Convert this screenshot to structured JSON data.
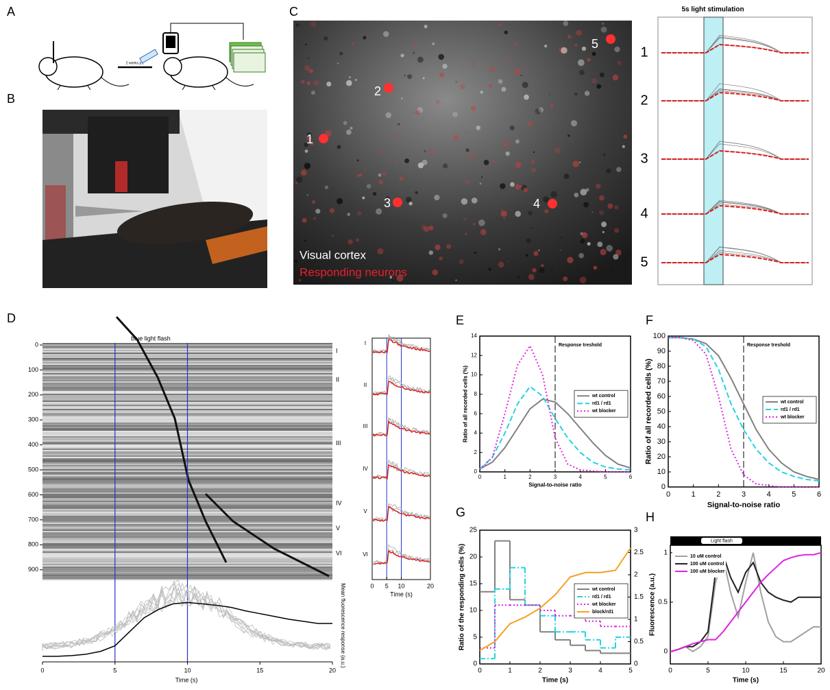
{
  "panel_labels": [
    "A",
    "B",
    "C",
    "D",
    "E",
    "F",
    "G",
    "H"
  ],
  "panel_a": {
    "interval": "2 weeks p.i."
  },
  "panel_c": {
    "cell_labels": [
      "1",
      "2",
      "3",
      "4",
      "5"
    ],
    "legend": [
      "Visual cortex",
      "Responding neurons"
    ],
    "legend_colors": [
      "#ffffff",
      "#e8202a"
    ],
    "trace_title": "5s light stimulation",
    "trace_labels": [
      "1",
      "2",
      "3",
      "4",
      "5"
    ]
  },
  "panel_d": {
    "title": "blue light flash",
    "xlim": [
      0,
      20
    ],
    "xticks": [
      0,
      5,
      10,
      15,
      20
    ],
    "xlabel": "Time (s)",
    "flash": [
      5,
      10
    ],
    "ylim": [
      0,
      920
    ],
    "yticks": [
      0,
      100,
      200,
      300,
      400,
      500,
      600,
      700,
      800,
      900
    ],
    "row_labels": [
      "I",
      "II",
      "III",
      "IV",
      "V",
      "VI"
    ],
    "mean": {
      "ylabel": "Mean fluorescence response (a.u.)",
      "ylim": [
        0,
        1
      ],
      "color": "#000000",
      "x": [
        0,
        1,
        2,
        3,
        4,
        5,
        6,
        7,
        8,
        9,
        10,
        11,
        12,
        13,
        14,
        15,
        16,
        17,
        18,
        19,
        20
      ],
      "values": [
        0.05,
        0.05,
        0.06,
        0.08,
        0.12,
        0.2,
        0.4,
        0.6,
        0.72,
        0.8,
        0.82,
        0.8,
        0.78,
        0.75,
        0.7,
        0.66,
        0.62,
        0.58,
        0.55,
        0.52,
        0.52
      ]
    },
    "inset": {
      "xlim": [
        0,
        20
      ],
      "xticks": [
        0,
        5,
        10,
        20
      ],
      "xlabel": "Time (s)",
      "row_labels": [
        "I",
        "II",
        "III",
        "IV",
        "V",
        "VI"
      ]
    }
  },
  "panel_e": {
    "xlim": [
      0,
      6
    ],
    "xticks": [
      0,
      1,
      2,
      3,
      4,
      5,
      6
    ],
    "ylim": [
      0,
      14
    ],
    "yticks": [
      0,
      2,
      4,
      6,
      8,
      10,
      12,
      14
    ],
    "xlabel": "Signal-to-noise ratio",
    "ylabel": "Ratio of all recorded cells (%)",
    "threshold": {
      "value": 3,
      "label": "Response treshold"
    },
    "legend": "right",
    "x": [
      0,
      0.5,
      1,
      1.5,
      2,
      2.5,
      3,
      3.5,
      4,
      4.5,
      5,
      5.5,
      6
    ],
    "series": [
      {
        "name": "wt control",
        "color": "#808080",
        "style": "solid",
        "values": [
          0.3,
          1,
          2.5,
          4.5,
          6.5,
          7.5,
          7.2,
          6,
          4.5,
          3,
          1.7,
          0.8,
          0.4
        ]
      },
      {
        "name": "rd1 / rd1",
        "color": "#22d4e0",
        "style": "dashed",
        "values": [
          0.3,
          1.5,
          4,
          7,
          8.8,
          7.8,
          5.5,
          3.5,
          2,
          1,
          0.5,
          0.3,
          0.2
        ]
      },
      {
        "name": "wt blocker",
        "color": "#e020e0",
        "style": "dotted",
        "values": [
          0.2,
          1.5,
          6,
          11,
          13,
          10,
          3.5,
          0.8,
          0.2,
          0.1,
          0,
          0,
          0
        ]
      }
    ]
  },
  "panel_f": {
    "xlim": [
      0,
      6
    ],
    "xticks": [
      0,
      1,
      2,
      3,
      4,
      5,
      6
    ],
    "ylim": [
      0,
      100
    ],
    "yticks": [
      0,
      10,
      20,
      30,
      40,
      50,
      60,
      70,
      80,
      90,
      100
    ],
    "xlabel": "Signal-to-noise ratio",
    "ylabel": "Ratio of all recorded cells (%)",
    "threshold": {
      "value": 3,
      "label": "Response treshold"
    },
    "legend": "right",
    "x": [
      0,
      0.5,
      1,
      1.5,
      2,
      2.5,
      3,
      3.5,
      4,
      4.5,
      5,
      5.5,
      6
    ],
    "series": [
      {
        "name": "wt control",
        "color": "#808080",
        "style": "solid",
        "values": [
          99,
          99,
          98,
          95,
          87,
          72,
          55,
          38,
          25,
          16,
          10,
          7,
          5
        ]
      },
      {
        "name": "rd1 / rd1",
        "color": "#22d4e0",
        "style": "dashed",
        "values": [
          99,
          99,
          98,
          93,
          78,
          55,
          38,
          25,
          16,
          10,
          7,
          5,
          4
        ]
      },
      {
        "name": "wt blocker",
        "color": "#e020e0",
        "style": "dotted",
        "values": [
          99,
          99,
          97,
          88,
          60,
          25,
          8,
          2,
          1,
          0,
          0,
          0,
          0
        ]
      }
    ]
  },
  "panel_g": {
    "xlim": [
      0,
      5
    ],
    "xticks": [
      0,
      1,
      2,
      3,
      4,
      5
    ],
    "ylim": [
      0,
      25
    ],
    "yticks": [
      0,
      5,
      10,
      15,
      20,
      25
    ],
    "y2lim": [
      0,
      3
    ],
    "y2ticks": [
      0,
      0.5,
      1,
      1.5,
      2,
      2.5,
      3
    ],
    "xlabel": "Time (s)",
    "ylabel": "Ratio of the responding cells (%)",
    "legend": "right",
    "x": [
      0,
      0.5,
      1,
      1.5,
      2,
      2.5,
      3,
      3.5,
      4,
      4.5,
      5
    ],
    "series": [
      {
        "name": "wt control",
        "color": "#808080",
        "style": "solid",
        "step": true,
        "values": [
          13.5,
          23,
          12,
          11,
          6,
          4.5,
          3.5,
          2.5,
          2,
          2
        ]
      },
      {
        "name": "rd1 / rd1",
        "color": "#22d4e0",
        "style": "dashdot",
        "step": true,
        "values": [
          1,
          14,
          18,
          11,
          9,
          6,
          6,
          4.5,
          3,
          5
        ]
      },
      {
        "name": "wt blocker",
        "color": "#e020e0",
        "style": "dotted",
        "step": true,
        "values": [
          3,
          11,
          11,
          11,
          10,
          9,
          9,
          8,
          7,
          7
        ]
      },
      {
        "name": "block/rd1",
        "color": "#f5a020",
        "style": "solid",
        "axis": "y2",
        "values": [
          0.3,
          0.5,
          0.9,
          1.05,
          1.25,
          1.55,
          1.95,
          2.05,
          2.05,
          2.1,
          2.6
        ]
      }
    ]
  },
  "panel_h": {
    "xlim": [
      0,
      20
    ],
    "xticks": [
      0,
      5,
      10,
      15,
      20
    ],
    "ylim": [
      -0.125,
      1.075
    ],
    "yticks": [
      0,
      0.5,
      1
    ],
    "xlabel": "Time (s)",
    "ylabel": "Fluorescence (a.u.)",
    "legend": "upper-left",
    "flash_label": "Light flash",
    "x": [
      0,
      1,
      2,
      3,
      4,
      5,
      6,
      7,
      8,
      9,
      10,
      11,
      12,
      13,
      14,
      15,
      16,
      17,
      18,
      19,
      20
    ],
    "series": [
      {
        "name": "10 uM control",
        "color": "#a0a0a0",
        "style": "solid",
        "values": [
          0,
          0.02,
          0.05,
          0,
          0.05,
          0.15,
          0.7,
          0.95,
          0.6,
          0.35,
          0.7,
          1.0,
          0.6,
          0.3,
          0.15,
          0.1,
          0.1,
          0.15,
          0.2,
          0.25,
          0.25
        ]
      },
      {
        "name": "100 uM control",
        "color": "#202020",
        "style": "solid",
        "values": [
          0,
          0.02,
          0.05,
          0.05,
          0.1,
          0.2,
          0.8,
          0.98,
          0.75,
          0.6,
          0.8,
          0.9,
          0.7,
          0.6,
          0.55,
          0.52,
          0.5,
          0.55,
          0.55,
          0.55,
          0.55
        ]
      },
      {
        "name": "100 uM blocker",
        "color": "#e020e0",
        "style": "solid",
        "values": [
          0,
          0.02,
          0.05,
          0.08,
          0.1,
          0.12,
          0.12,
          0.2,
          0.3,
          0.4,
          0.5,
          0.6,
          0.7,
          0.78,
          0.85,
          0.92,
          0.95,
          0.97,
          0.98,
          0.98,
          1.0
        ]
      }
    ]
  }
}
